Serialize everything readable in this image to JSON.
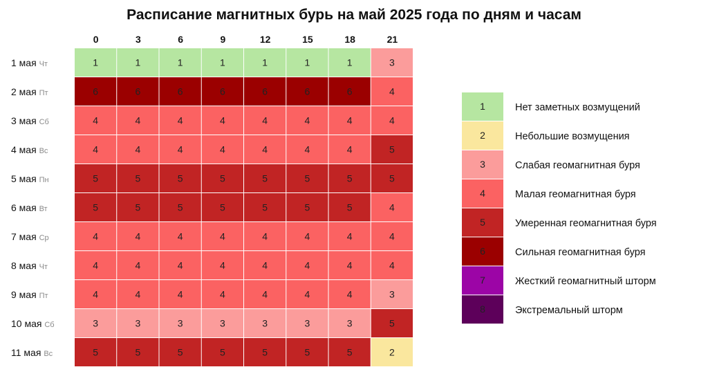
{
  "chart_data": {
    "type": "heatmap",
    "title": "Расписание магнитных бурь на май 2025 года по дням и часам",
    "x": [
      "0",
      "3",
      "6",
      "9",
      "12",
      "15",
      "18",
      "21"
    ],
    "rows": [
      {
        "day": "1 мая",
        "dow": "Чт",
        "values": [
          1,
          1,
          1,
          1,
          1,
          1,
          1,
          3
        ]
      },
      {
        "day": "2 мая",
        "dow": "Пт",
        "values": [
          6,
          6,
          6,
          6,
          6,
          6,
          6,
          4
        ]
      },
      {
        "day": "3 мая",
        "dow": "Сб",
        "values": [
          4,
          4,
          4,
          4,
          4,
          4,
          4,
          4
        ]
      },
      {
        "day": "4 мая",
        "dow": "Вс",
        "values": [
          4,
          4,
          4,
          4,
          4,
          4,
          4,
          5
        ]
      },
      {
        "day": "5 мая",
        "dow": "Пн",
        "values": [
          5,
          5,
          5,
          5,
          5,
          5,
          5,
          5
        ]
      },
      {
        "day": "6 мая",
        "dow": "Вт",
        "values": [
          5,
          5,
          5,
          5,
          5,
          5,
          5,
          4
        ]
      },
      {
        "day": "7 мая",
        "dow": "Ср",
        "values": [
          4,
          4,
          4,
          4,
          4,
          4,
          4,
          4
        ]
      },
      {
        "day": "8 мая",
        "dow": "Чт",
        "values": [
          4,
          4,
          4,
          4,
          4,
          4,
          4,
          4
        ]
      },
      {
        "day": "9 мая",
        "dow": "Пт",
        "values": [
          4,
          4,
          4,
          4,
          4,
          4,
          4,
          3
        ]
      },
      {
        "day": "10 мая",
        "dow": "Сб",
        "values": [
          3,
          3,
          3,
          3,
          3,
          3,
          3,
          5
        ]
      },
      {
        "day": "11 мая",
        "dow": "Вс",
        "values": [
          5,
          5,
          5,
          5,
          5,
          5,
          5,
          2
        ]
      }
    ],
    "legend": [
      {
        "level": "1",
        "label": "Нет заметных возмущений",
        "color": "#b6e6a1"
      },
      {
        "level": "2",
        "label": "Небольшие возмущения",
        "color": "#fae79e"
      },
      {
        "level": "3",
        "label": "Слабая геомагнитная буря",
        "color": "#fb9c9b"
      },
      {
        "level": "4",
        "label": "Малая геомагнитная буря",
        "color": "#fb6262"
      },
      {
        "level": "5",
        "label": "Умеренная геомагнитная буря",
        "color": "#c12424"
      },
      {
        "level": "6",
        "label": "Сильная геомагнитная буря",
        "color": "#9b0000"
      },
      {
        "level": "7",
        "label": "Жесткий геомагнитный шторм",
        "color": "#9c05a6"
      },
      {
        "level": "8",
        "label": "Экстремальный шторм",
        "color": "#5d005a"
      }
    ],
    "legend_placement": "right"
  }
}
